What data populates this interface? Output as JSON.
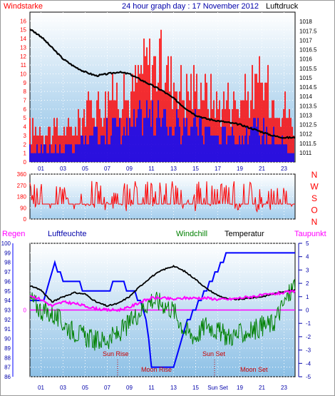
{
  "header": {
    "title": "24 hour graph day : 17 November 2012",
    "left_label": "Windstarke",
    "right_label": "Luftdruck"
  },
  "hour_ticks": [
    "01",
    "03",
    "05",
    "07",
    "09",
    "11",
    "13",
    "15",
    "17",
    "19",
    "21",
    "23"
  ],
  "lower_hour_ticks": [
    "01",
    "03",
    "05",
    "07",
    "09",
    "11",
    "13",
    "15",
    "Sun Set",
    "19",
    "21",
    "23"
  ],
  "colors": {
    "gust": "#ff0000",
    "wind": "#0000ff",
    "pressure": "#000000",
    "direction": "#ff0000",
    "humidity": "#0000ff",
    "windchill": "#008000",
    "temperature": "#000000",
    "dewpoint": "#ff00ff",
    "rain": "#ff00ff",
    "axis_text_blue": "#0000aa",
    "axis_text_red": "#ff0000",
    "sky_top": "#ffffff",
    "sky_bottom": "#8cc0e6"
  },
  "chart_data": [
    {
      "type": "bar",
      "id": "wind",
      "title": "24 hour graph day : 17 November 2012",
      "ylabel_left": "Windstarke",
      "ylabel_right": "Luftdruck",
      "x_range": [
        0,
        24
      ],
      "ylim_left": [
        0,
        17
      ],
      "ylim_right": [
        1010.5,
        1018.5
      ],
      "left_ticks": [
        0,
        1,
        2,
        3,
        4,
        5,
        6,
        7,
        8,
        9,
        10,
        11,
        12,
        13,
        14,
        15,
        16
      ],
      "right_ticks": [
        "1011",
        "1011.5",
        "1012",
        "1012.5",
        "1013",
        "1013.5",
        "1014",
        "1014.5",
        "1015",
        "1015.5",
        "1016",
        "1016.5",
        "1017",
        "1017.5",
        "1018"
      ],
      "gust_envelope": {
        "x": [
          0,
          2,
          4,
          4.5,
          6,
          7,
          8,
          9,
          10,
          10.5,
          11,
          12,
          13,
          14,
          15,
          16,
          17,
          18,
          19,
          20,
          21,
          22,
          23,
          24
        ],
        "y": [
          5,
          5,
          5,
          7,
          9,
          10,
          11,
          10,
          14,
          15,
          16,
          15,
          13,
          11,
          12,
          11,
          9,
          10,
          9,
          11,
          12,
          10,
          9,
          5
        ]
      },
      "wind_envelope": {
        "x": [
          0,
          2,
          4,
          4.5,
          6,
          7,
          8,
          9,
          10,
          10.5,
          11,
          12,
          13,
          14,
          15,
          16,
          17,
          18,
          19,
          20,
          21,
          22,
          23,
          24
        ],
        "y": [
          2,
          2,
          2,
          3,
          4,
          5,
          6,
          5,
          7,
          8,
          7,
          7,
          6,
          5,
          6,
          5,
          4,
          5,
          4,
          5,
          5,
          4,
          3,
          1
        ]
      },
      "pressure": {
        "x": [
          0,
          1,
          2,
          3,
          4,
          5,
          6,
          7,
          8,
          9,
          10,
          11,
          12,
          13,
          14,
          15,
          16,
          17,
          18,
          19,
          20,
          21,
          22,
          23,
          24
        ],
        "y": [
          1017.6,
          1017.2,
          1016.6,
          1016.0,
          1015.6,
          1015.3,
          1015.1,
          1015.2,
          1015.3,
          1015.2,
          1014.9,
          1014.6,
          1014.3,
          1013.9,
          1013.4,
          1013.0,
          1012.8,
          1012.7,
          1012.6,
          1012.5,
          1012.3,
          1012.1,
          1011.9,
          1011.8,
          1011.8
        ]
      }
    },
    {
      "type": "line",
      "id": "direction",
      "ylim": [
        0,
        360
      ],
      "y_ticks": [
        0,
        90,
        180,
        270,
        360
      ],
      "compass_labels": [
        "N",
        "W",
        "S",
        "O",
        "N"
      ],
      "x_range": [
        0,
        24
      ],
      "baseline": 120,
      "typical_range": [
        60,
        310
      ]
    },
    {
      "type": "line",
      "id": "climate",
      "labels": {
        "rain": "Regen",
        "humidity": "Luftfeuchte",
        "windchill": "Windchill",
        "temperature": "Temperatur",
        "dewpoint": "Taupunkt"
      },
      "annotations": [
        "Sun Rise",
        "Moon Rise",
        "Sun Set",
        "Moon Set"
      ],
      "ylim_left": [
        86,
        100
      ],
      "left_ticks": [
        86,
        87,
        88,
        89,
        90,
        91,
        92,
        93,
        94,
        95,
        96,
        97,
        98,
        99,
        100
      ],
      "ylim_right": [
        -5,
        5
      ],
      "right_ticks": [
        -5,
        -4,
        -3,
        -2,
        -1,
        0,
        1,
        2,
        3,
        4,
        5
      ],
      "rain_axis_label": "0",
      "humidity": {
        "x": [
          0,
          1,
          2,
          2.3,
          3,
          4,
          5,
          6,
          7,
          8,
          9,
          10,
          10.5,
          11,
          12,
          13,
          14,
          15,
          16,
          16.5,
          17,
          18,
          19,
          20,
          21,
          22,
          23,
          24
        ],
        "y": [
          93.5,
          93.5,
          97,
          98,
          96,
          96,
          95,
          95,
          95,
          96,
          95,
          94,
          92,
          87,
          87,
          87,
          91,
          93,
          95,
          96,
          97,
          99,
          99,
          99,
          99,
          99,
          99,
          99
        ]
      },
      "temperature": {
        "x": [
          0,
          1,
          2,
          3,
          4,
          5,
          6,
          7,
          8,
          9,
          10,
          11,
          12,
          13,
          14,
          15,
          16,
          17,
          18,
          19,
          20,
          21,
          22,
          23,
          24
        ],
        "y": [
          1.8,
          1.5,
          0.6,
          1.0,
          1.3,
          1.2,
          0.6,
          0.3,
          0.5,
          1.0,
          1.8,
          2.5,
          3.0,
          3.3,
          2.9,
          2.3,
          1.6,
          1.1,
          0.8,
          0.8,
          0.9,
          1.0,
          1.2,
          1.4,
          1.5
        ]
      },
      "dewpoint": {
        "x": [
          0,
          1,
          2,
          3,
          4,
          5,
          6,
          7,
          8,
          9,
          10,
          11,
          12,
          13,
          14,
          15,
          16,
          17,
          18,
          19,
          20,
          21,
          22,
          23,
          24
        ],
        "y": [
          1.1,
          0.8,
          0.3,
          0.6,
          0.5,
          0.3,
          0.1,
          0.0,
          0.0,
          0.2,
          0.6,
          0.9,
          0.9,
          0.8,
          0.9,
          0.9,
          0.9,
          0.8,
          0.8,
          0.9,
          1.0,
          1.1,
          1.2,
          1.3,
          1.4
        ]
      },
      "windchill": {
        "x": [
          0,
          1,
          2,
          3,
          4,
          5,
          6,
          7,
          8,
          9,
          10,
          11,
          12,
          13,
          14,
          15,
          16,
          17,
          18,
          19,
          20,
          21,
          22,
          23,
          24
        ],
        "y": [
          0.9,
          0.0,
          -0.3,
          -1.0,
          -1.6,
          -2.0,
          -2.3,
          -2.2,
          -1.8,
          -1.0,
          0.0,
          0.8,
          0.5,
          0.0,
          -1.5,
          -2.0,
          -1.0,
          -1.6,
          -2.0,
          -1.8,
          -1.6,
          -1.2,
          -1.0,
          0.5,
          2.0
        ]
      },
      "rain": {
        "x": [
          0,
          24
        ],
        "y": [
          0,
          0
        ]
      }
    }
  ]
}
